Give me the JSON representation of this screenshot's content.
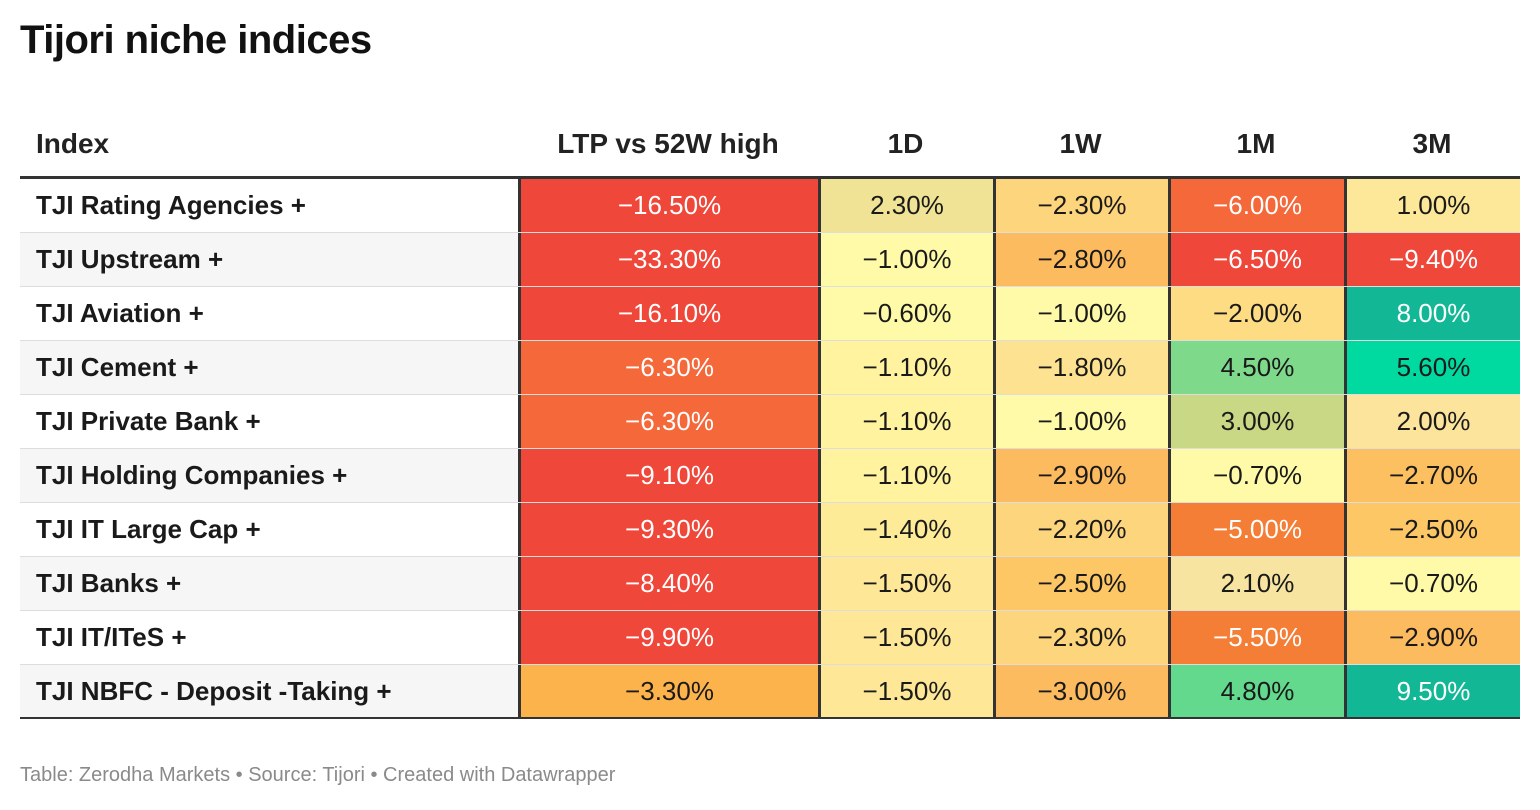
{
  "title": "Tijori niche indices",
  "footer": "Table: Zerodha Markets • Source: Tijori • Created with Datawrapper",
  "chart_data": {
    "type": "table",
    "title": "Tijori niche indices",
    "columns": [
      "Index",
      "LTP vs 52W high",
      "1D",
      "1W",
      "1M",
      "3M"
    ],
    "rows": [
      {
        "name": "TJI Rating Agencies +",
        "values": [
          "−16.50%",
          "2.30%",
          "−2.30%",
          "−6.00%",
          "1.00%"
        ],
        "colors": [
          "#ef473a",
          "#f0e396",
          "#fdd57d",
          "#f4683a",
          "#fde89a"
        ]
      },
      {
        "name": "TJI Upstream +",
        "values": [
          "−33.30%",
          "−1.00%",
          "−2.80%",
          "−6.50%",
          "−9.40%"
        ],
        "colors": [
          "#ef473a",
          "#fffaa8",
          "#fdbb5f",
          "#ef473a",
          "#ef473a"
        ]
      },
      {
        "name": "TJI Aviation +",
        "values": [
          "−16.10%",
          "−0.60%",
          "−1.00%",
          "−2.00%",
          "8.00%"
        ],
        "colors": [
          "#ef473a",
          "#fffaa8",
          "#fffaa8",
          "#fddc84",
          "#12b896"
        ]
      },
      {
        "name": "TJI Cement +",
        "values": [
          "−6.30%",
          "−1.10%",
          "−1.80%",
          "4.50%",
          "5.60%"
        ],
        "colors": [
          "#f4683a",
          "#fff3a0",
          "#fde391",
          "#7fd98b",
          "#00d9a0"
        ]
      },
      {
        "name": "TJI Private Bank +",
        "values": [
          "−6.30%",
          "−1.10%",
          "−1.00%",
          "3.00%",
          "2.00%"
        ],
        "colors": [
          "#f4683a",
          "#fff3a0",
          "#fffaa8",
          "#c9d884",
          "#fde49c"
        ]
      },
      {
        "name": "TJI Holding Companies +",
        "values": [
          "−9.10%",
          "−1.10%",
          "−2.90%",
          "−0.70%",
          "−2.70%"
        ],
        "colors": [
          "#ef473a",
          "#fff3a0",
          "#fdbb5f",
          "#fffaa8",
          "#fdc060"
        ]
      },
      {
        "name": "TJI IT Large Cap +",
        "values": [
          "−9.30%",
          "−1.40%",
          "−2.20%",
          "−5.00%",
          "−2.50%"
        ],
        "colors": [
          "#ef473a",
          "#feeb98",
          "#fdd57d",
          "#f57e36",
          "#fdc765"
        ]
      },
      {
        "name": "TJI Banks +",
        "values": [
          "−8.40%",
          "−1.50%",
          "−2.50%",
          "2.10%",
          "−0.70%"
        ],
        "colors": [
          "#ef473a",
          "#fee796",
          "#fdc765",
          "#f7e4a0",
          "#fffaa8"
        ]
      },
      {
        "name": "TJI IT/ITeS +",
        "values": [
          "−9.90%",
          "−1.50%",
          "−2.30%",
          "−5.50%",
          "−2.90%"
        ],
        "colors": [
          "#ef473a",
          "#fee796",
          "#fdd57d",
          "#f57e36",
          "#fdbb5f"
        ]
      },
      {
        "name": "TJI NBFC - Deposit -Taking +",
        "values": [
          "−3.30%",
          "−1.50%",
          "−3.00%",
          "4.80%",
          "9.50%"
        ],
        "colors": [
          "#fdb34c",
          "#fee796",
          "#fdbb5f",
          "#62d98d",
          "#12b896"
        ]
      }
    ]
  }
}
